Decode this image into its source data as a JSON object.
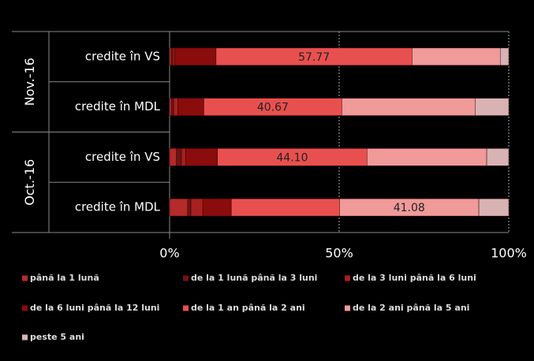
{
  "chart_data": {
    "type": "stacked-bar-horizontal",
    "groups": [
      {
        "name": "Nov.-16",
        "categories": [
          "credite în VS",
          "credite în MDL"
        ]
      },
      {
        "name": "Oct.-16",
        "categories": [
          "credite în VS",
          "credite în MDL"
        ]
      }
    ],
    "series": [
      {
        "name": "până la 1 lună",
        "color": "#b52a2a",
        "values": [
          0.5,
          0.6,
          2.0,
          5.3
        ]
      },
      {
        "name": "de la 1 lună până la 3 luni",
        "color": "#6e1414",
        "values": [
          0.5,
          0.6,
          1.5,
          1.0
        ]
      },
      {
        "name": "de la 3 luni până la 6 luni",
        "color": "#a82020",
        "values": [
          0.5,
          1.2,
          1.2,
          3.5
        ]
      },
      {
        "name": "de la 6 luni până la 12 luni",
        "color": "#8a0c0c",
        "values": [
          12.2,
          7.7,
          9.4,
          8.4
        ]
      },
      {
        "name": "de la 1 an până la 2 ani",
        "color": "#e8504f",
        "values": [
          57.77,
          40.67,
          44.1,
          31.9
        ],
        "value_labels": [
          "57.77",
          "40.67",
          "44.10",
          null
        ]
      },
      {
        "name": "de la 2 ani până la 5 ani",
        "color": "#f09a9a",
        "values": [
          26.03,
          39.3,
          35.3,
          41.08
        ],
        "value_labels": [
          null,
          null,
          null,
          "41.08"
        ]
      },
      {
        "name": "peste 5 ani",
        "color": "#d9b3b3",
        "values": [
          2.5,
          9.93,
          6.5,
          8.82
        ]
      }
    ],
    "xlim": [
      0,
      100
    ],
    "xticks": [
      {
        "value": 0,
        "label": "0%"
      },
      {
        "value": 50,
        "label": "50%"
      },
      {
        "value": 100,
        "label": "100%"
      }
    ],
    "grid": true
  }
}
